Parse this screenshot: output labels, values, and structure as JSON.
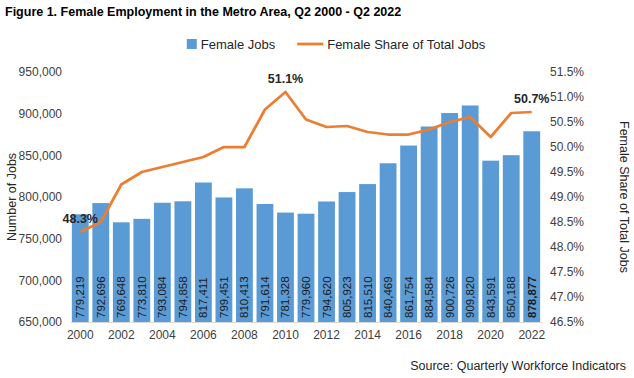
{
  "chart_data": {
    "type": "bar",
    "title": "Figure 1. Female Employment in the Metro Area, Q2 2000 - Q2 2022",
    "source": "Source: Quarterly Workforce Indicators",
    "y_label": "Number of Jobs",
    "y2_label": "Female Share of Total Jobs",
    "legend": "top",
    "grid": false,
    "categories": [
      "2000",
      null,
      "2002",
      null,
      "2004",
      null,
      "2006",
      null,
      "2008",
      null,
      "2010",
      null,
      "2012",
      null,
      "2014",
      null,
      "2016",
      null,
      "2018",
      null,
      "2020",
      null,
      "2022"
    ],
    "ylim": [
      650000,
      950000
    ],
    "yticks": [
      {
        "value": 650000,
        "label": "650,000"
      },
      {
        "value": 700000,
        "label": "700,000"
      },
      {
        "value": 750000,
        "label": "750,000"
      },
      {
        "value": 800000,
        "label": "800,000"
      },
      {
        "value": 850000,
        "label": "850,000"
      },
      {
        "value": 900000,
        "label": "900,000"
      },
      {
        "value": 950000,
        "label": "950,000"
      }
    ],
    "y2lim": [
      46.5,
      51.5
    ],
    "y2ticks": [
      {
        "value": 46.5,
        "label": "46.5%"
      },
      {
        "value": 47.0,
        "label": "47.0%"
      },
      {
        "value": 47.5,
        "label": "47.5%"
      },
      {
        "value": 48.0,
        "label": "48.0%"
      },
      {
        "value": 48.5,
        "label": "48.5%"
      },
      {
        "value": 49.0,
        "label": "49.0%"
      },
      {
        "value": 49.5,
        "label": "49.5%"
      },
      {
        "value": 50.0,
        "label": "50.0%"
      },
      {
        "value": 50.5,
        "label": "50.5%"
      },
      {
        "value": 51.0,
        "label": "51.0%"
      },
      {
        "value": 51.5,
        "label": "51.5%"
      }
    ],
    "series": [
      {
        "name": "Female Jobs",
        "type": "bar",
        "color": "#5b9bd5",
        "data_labels": true,
        "values": [
          779219,
          792696,
          769648,
          773810,
          793084,
          794858,
          817411,
          799451,
          810413,
          791614,
          781328,
          779960,
          794620,
          805923,
          815510,
          840469,
          861754,
          884584,
          900726,
          909820,
          843591,
          850188,
          878877
        ],
        "value_labels": [
          "779,219",
          "792,696",
          "769,648",
          "773,810",
          "793,084",
          "794,858",
          "817,411",
          "799,451",
          "810,413",
          "791,614",
          "781,328",
          "779,960",
          "794,620",
          "805,923",
          "815,510",
          "840,469",
          "861,754",
          "884,584",
          "900,726",
          "909,820",
          "843,591",
          "850,188",
          "878,877"
        ]
      },
      {
        "name": "Female Share of Total Jobs",
        "type": "line",
        "axis": "y2",
        "color": "#ed7d31",
        "data_labels": true,
        "values": [
          48.3,
          48.5,
          49.25,
          49.5,
          49.6,
          49.7,
          49.8,
          50.0,
          50.0,
          50.75,
          51.1,
          50.55,
          50.4,
          50.42,
          50.3,
          50.25,
          50.25,
          50.35,
          50.5,
          50.6,
          50.2,
          50.68,
          50.7
        ],
        "value_labels": [
          "48.3%",
          null,
          null,
          null,
          null,
          null,
          null,
          null,
          null,
          null,
          "51.1%",
          null,
          null,
          null,
          null,
          null,
          null,
          null,
          null,
          null,
          null,
          null,
          "50.7%"
        ]
      }
    ]
  }
}
